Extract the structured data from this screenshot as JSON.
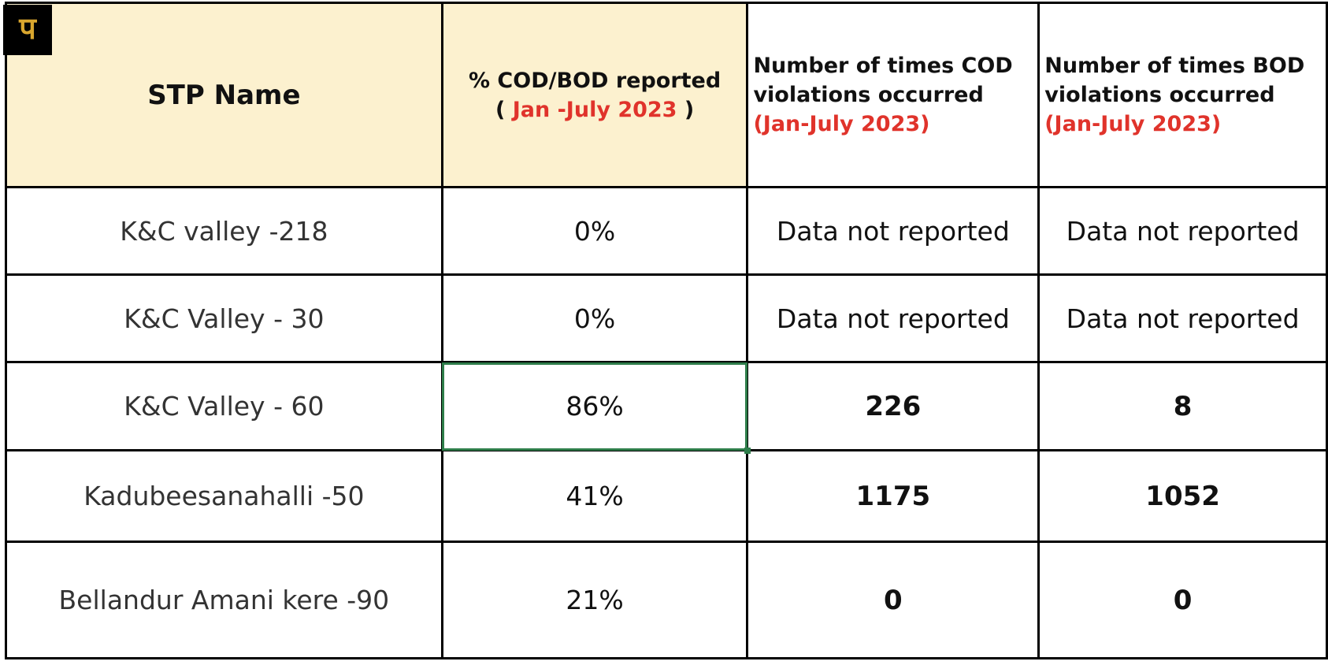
{
  "logo": {
    "glyph": "प",
    "icon": "logo-icon"
  },
  "header": {
    "name": "STP Name",
    "pct_line1": "% COD/BOD reported",
    "pct_open": "(",
    "pct_range": "Jan -July 2023",
    "pct_close": ")",
    "cod_line1": "Number of times COD",
    "cod_line2": "violations occurred",
    "cod_range": "(Jan-July 2023)",
    "bod_line1": "Number of times BOD",
    "bod_line2": "violations occurred",
    "bod_range": "(Jan-July 2023)"
  },
  "rows": [
    {
      "name": "K&C valley -218",
      "pct": "0%",
      "cod": "Data not reported",
      "bod": "Data not reported"
    },
    {
      "name": "K&C Valley - 30",
      "pct": "0%",
      "cod": "Data not reported",
      "bod": "Data not reported"
    },
    {
      "name": "K&C Valley - 60",
      "pct": "86%",
      "cod": "226",
      "bod": "8"
    },
    {
      "name": "Kadubeesanahalli -50",
      "pct": "41%",
      "cod": "1175",
      "bod": "1052"
    },
    {
      "name": "Bellandur Amani kere -90",
      "pct": "21%",
      "cod": "0",
      "bod": "0"
    }
  ],
  "colors": {
    "header_bg": "#fcf1cf",
    "accent_red": "#e0332b",
    "selection": "#2e7d4a"
  }
}
